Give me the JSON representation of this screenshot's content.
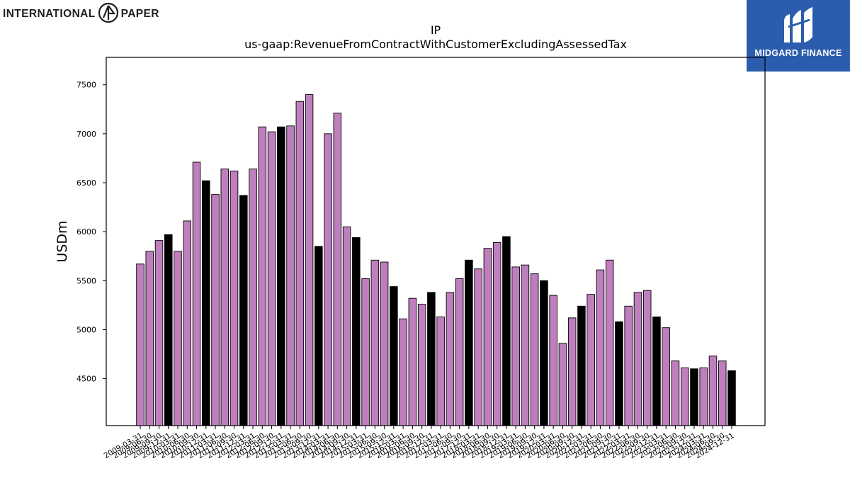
{
  "branding": {
    "left_logo_text_1": "INTERNATIONAL",
    "left_logo_text_2": "PAPER",
    "left_logo_icon": "international-paper-icon",
    "right_logo_text": "MIDGARD FINANCE",
    "right_logo_icon": "midgard-finance-icon",
    "right_logo_bg": "#2c5cae"
  },
  "chart_data": {
    "type": "bar",
    "title": "IP",
    "subtitle": "us-gaap:RevenueFromContractWithCustomerExcludingAssessedTax",
    "xlabel": "",
    "ylabel": "USDm",
    "ylim": [
      4020,
      7780
    ],
    "yticks": [
      4500,
      5000,
      5500,
      6000,
      6500,
      7000,
      7500
    ],
    "grid": false,
    "colors": {
      "quarter": "#bf7fbf",
      "annual": "#000000",
      "edge": "#000000"
    },
    "categories": [
      "2009-03-31",
      "2009-06-30",
      "2009-09-30",
      "2009-12-31",
      "2010-03-31",
      "2010-06-30",
      "2010-09-30",
      "2010-12-31",
      "2011-03-31",
      "2011-06-30",
      "2011-09-30",
      "2011-12-31",
      "2012-03-31",
      "2012-06-30",
      "2012-09-30",
      "2012-12-31",
      "2013-03-31",
      "2013-06-30",
      "2013-09-30",
      "2013-12-31",
      "2014-03-31",
      "2014-06-30",
      "2014-09-30",
      "2014-12-31",
      "2015-03-31",
      "2015-06-30",
      "2015-09-30",
      "2015-12-31",
      "2016-03-31",
      "2016-06-30",
      "2016-09-30",
      "2016-12-31",
      "2017-03-31",
      "2017-06-30",
      "2017-09-30",
      "2017-12-31",
      "2018-03-31",
      "2018-06-30",
      "2018-09-30",
      "2018-12-31",
      "2019-03-31",
      "2019-06-30",
      "2019-09-30",
      "2019-12-31",
      "2020-03-31",
      "2020-06-30",
      "2020-09-30",
      "2020-12-31",
      "2021-03-31",
      "2021-06-30",
      "2021-09-30",
      "2021-12-31",
      "2022-03-31",
      "2022-06-30",
      "2022-09-30",
      "2022-12-31",
      "2023-03-31",
      "2023-06-30",
      "2023-09-30",
      "2023-12-31",
      "2024-03-31",
      "2024-06-30",
      "2024-09-30",
      "2024-12-31"
    ],
    "values": [
      5670,
      5800,
      5910,
      5970,
      5800,
      6110,
      6710,
      6520,
      6380,
      6640,
      6620,
      6370,
      6640,
      7070,
      7020,
      7070,
      7080,
      7330,
      7400,
      5850,
      7000,
      7210,
      6050,
      5940,
      5520,
      5710,
      5690,
      5440,
      5110,
      5320,
      5260,
      5380,
      5130,
      5380,
      5520,
      5710,
      5620,
      5830,
      5890,
      5950,
      5640,
      5660,
      5570,
      5500,
      5350,
      4860,
      5120,
      5240,
      5360,
      5610,
      5710,
      5080,
      5240,
      5380,
      5400,
      5130,
      5020,
      4680,
      4610,
      4600,
      4610,
      4730,
      4680,
      4580
    ],
    "annual_flags": [
      false,
      false,
      false,
      true,
      false,
      false,
      false,
      true,
      false,
      false,
      false,
      true,
      false,
      false,
      false,
      true,
      false,
      false,
      false,
      true,
      false,
      false,
      false,
      true,
      false,
      false,
      false,
      true,
      false,
      false,
      false,
      true,
      false,
      false,
      false,
      true,
      false,
      false,
      false,
      true,
      false,
      false,
      false,
      true,
      false,
      false,
      false,
      true,
      false,
      false,
      false,
      true,
      false,
      false,
      false,
      true,
      false,
      false,
      false,
      true,
      false,
      false,
      false,
      true
    ]
  }
}
